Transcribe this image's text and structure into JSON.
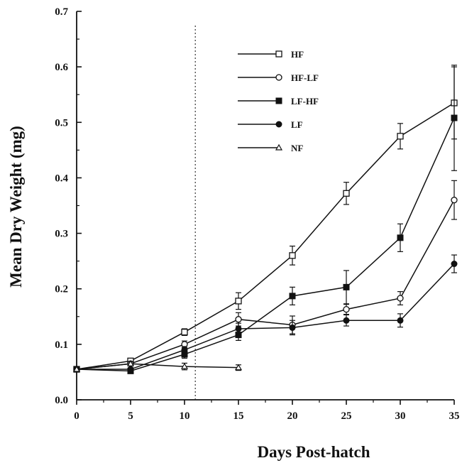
{
  "chart_data": {
    "type": "line",
    "xlabel": "Days Post-hatch",
    "ylabel": "Mean Dry Weight (mg)",
    "xlim": [
      0,
      35
    ],
    "ylim": [
      0.0,
      0.7
    ],
    "x_ticks": [
      "0",
      "5",
      "10",
      "15",
      "20",
      "25",
      "30",
      "35"
    ],
    "y_ticks": [
      "0.0",
      "0.1",
      "0.2",
      "0.3",
      "0.4",
      "0.5",
      "0.6",
      "0.7"
    ],
    "vertical_reference_line_x": 11,
    "grid": false,
    "legend_position": "top-right",
    "series": [
      {
        "name": "HF",
        "marker": "open-square",
        "x": [
          0,
          5,
          10,
          15,
          20,
          25,
          30,
          35
        ],
        "y": [
          0.055,
          0.07,
          0.122,
          0.178,
          0.26,
          0.372,
          0.475,
          0.535
        ],
        "err": [
          0.004,
          0.004,
          0.006,
          0.015,
          0.017,
          0.02,
          0.023,
          0.065
        ]
      },
      {
        "name": "HF-LF",
        "marker": "open-circle",
        "x": [
          0,
          5,
          10,
          15,
          20,
          25,
          30,
          35
        ],
        "y": [
          0.055,
          0.065,
          0.1,
          0.145,
          0.135,
          0.163,
          0.183,
          0.36
        ],
        "err": [
          0.003,
          0.004,
          0.006,
          0.012,
          0.016,
          0.009,
          0.012,
          0.035
        ]
      },
      {
        "name": "LF-HF",
        "marker": "filled-square",
        "x": [
          0,
          5,
          10,
          15,
          20,
          25,
          30,
          35
        ],
        "y": [
          0.055,
          0.052,
          0.082,
          0.117,
          0.187,
          0.203,
          0.292,
          0.508
        ],
        "err": [
          0.003,
          0.003,
          0.007,
          0.01,
          0.016,
          0.03,
          0.025,
          0.095
        ]
      },
      {
        "name": "LF",
        "marker": "filled-circle",
        "x": [
          0,
          5,
          10,
          15,
          20,
          25,
          30,
          35
        ],
        "y": [
          0.055,
          0.055,
          0.09,
          0.128,
          0.13,
          0.143,
          0.143,
          0.245
        ],
        "err": [
          0.003,
          0.003,
          0.006,
          0.01,
          0.013,
          0.01,
          0.012,
          0.016
        ]
      },
      {
        "name": "NF",
        "marker": "open-triangle",
        "x": [
          0,
          5,
          10,
          15
        ],
        "y": [
          0.055,
          0.065,
          0.06,
          0.058
        ],
        "err": [
          0.003,
          0.003,
          0.006,
          0.005
        ]
      }
    ]
  }
}
